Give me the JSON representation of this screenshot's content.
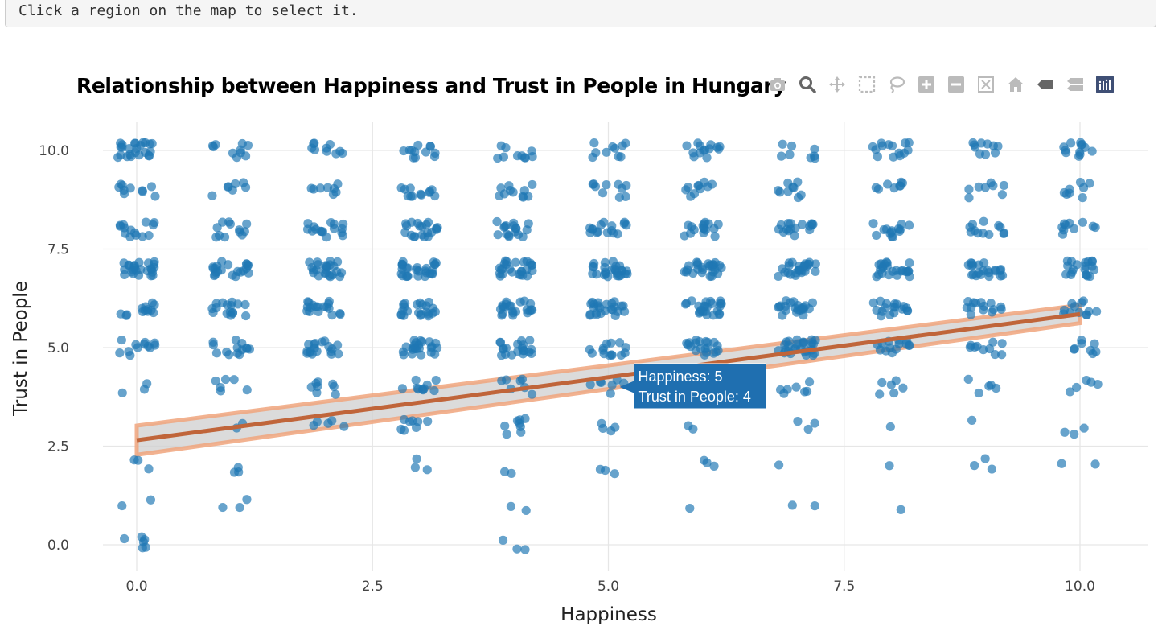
{
  "notice": "Click a region on the map to select it.",
  "modebar": {
    "buttons": [
      "camera-icon",
      "zoom-icon",
      "pan-icon",
      "box-select-icon",
      "lasso-icon",
      "zoom-in-icon",
      "zoom-out-icon",
      "autoscale-icon",
      "reset-axes-icon",
      "hover-closest-icon",
      "hover-compare-icon",
      "plotly-logo-icon"
    ],
    "color": "#bbbbbb",
    "logo_color": "#3f4f75"
  },
  "tooltip": {
    "line1": "Happiness: 5",
    "line2": "Trust in People: 4",
    "x": 5,
    "y": 4
  },
  "chart_data": {
    "type": "scatter",
    "title": "Relationship between Happiness and Trust in People in Hungary",
    "xlabel": "Happiness",
    "ylabel": "Trust in People",
    "xlim": [
      -0.6,
      10.9
    ],
    "ylim": [
      -0.7,
      10.7
    ],
    "xticks": [
      "0.0",
      "2.5",
      "5.0",
      "7.5",
      "10.0"
    ],
    "yticks": [
      "0.0",
      "2.5",
      "5.0",
      "7.5",
      "10.0"
    ],
    "grid": true,
    "point_color": "#1f77b4",
    "jitter": 0.2,
    "points_per_cell": [
      [
        6,
        0,
        0,
        0,
        3,
        0,
        0,
        0,
        0,
        0,
        0
      ],
      [
        2,
        3,
        0,
        0,
        2,
        0,
        1,
        2,
        1,
        0,
        0
      ],
      [
        3,
        3,
        0,
        3,
        2,
        3,
        3,
        1,
        1,
        3,
        2
      ],
      [
        0,
        2,
        5,
        8,
        8,
        4,
        2,
        3,
        1,
        1,
        3
      ],
      [
        3,
        6,
        8,
        10,
        7,
        7,
        6,
        7,
        6,
        5,
        5
      ],
      [
        12,
        14,
        18,
        24,
        20,
        14,
        20,
        28,
        14,
        10,
        8
      ],
      [
        13,
        16,
        18,
        22,
        22,
        24,
        24,
        22,
        18,
        14,
        12
      ],
      [
        25,
        22,
        24,
        28,
        26,
        26,
        26,
        26,
        24,
        22,
        20
      ],
      [
        14,
        12,
        16,
        20,
        17,
        16,
        16,
        16,
        14,
        12,
        10
      ],
      [
        10,
        7,
        8,
        12,
        11,
        10,
        10,
        9,
        8,
        8,
        8
      ],
      [
        24,
        10,
        10,
        12,
        10,
        10,
        14,
        8,
        14,
        10,
        12
      ]
    ],
    "fit": {
      "x": [
        0,
        10
      ],
      "y": [
        2.65,
        5.85
      ],
      "ci_lower": [
        2.28,
        5.62
      ],
      "ci_upper": [
        3.02,
        6.08
      ],
      "line_color": "#c0653a",
      "band_color": "#f0a47c"
    }
  }
}
